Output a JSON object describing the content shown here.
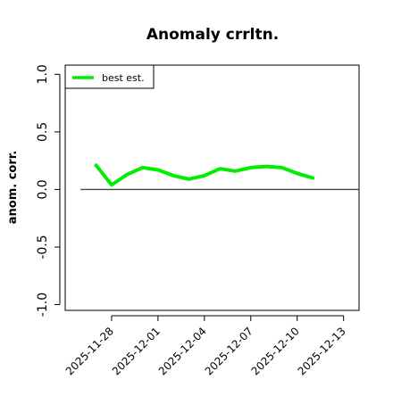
{
  "chart_data": {
    "type": "line",
    "title": "Anomaly crrltn.",
    "xlabel": "",
    "ylabel": "anom. corr.",
    "x_ticks": [
      "2025-11-28",
      "2025-12-01",
      "2025-12-04",
      "2025-12-07",
      "2025-12-10",
      "2025-12-13"
    ],
    "y_ticks": [
      "-1.0",
      "-0.5",
      "0.0",
      "0.5",
      "1.0"
    ],
    "xlim": [
      "2025-11-25",
      "2025-12-14"
    ],
    "ylim": [
      -1.05,
      1.08
    ],
    "legend_position": "top-left",
    "reference_line": 0.0,
    "series": [
      {
        "name": "best est.",
        "color": "#00ee00",
        "x": [
          "2025-11-27",
          "2025-11-28",
          "2025-11-29",
          "2025-11-30",
          "2025-12-01",
          "2025-12-02",
          "2025-12-03",
          "2025-12-04",
          "2025-12-05",
          "2025-12-06",
          "2025-12-07",
          "2025-12-08",
          "2025-12-09",
          "2025-12-10",
          "2025-12-11"
        ],
        "values": [
          0.21,
          0.04,
          0.13,
          0.19,
          0.17,
          0.12,
          0.09,
          0.12,
          0.18,
          0.16,
          0.19,
          0.2,
          0.19,
          0.14,
          0.1
        ]
      }
    ]
  }
}
